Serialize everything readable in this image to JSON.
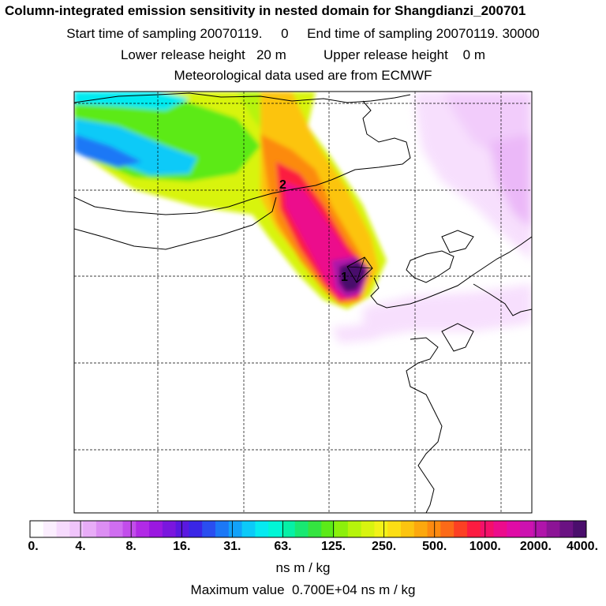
{
  "header": {
    "title": "Column-integrated emission sensitivity in nested domain for Shangdianzi_200701",
    "line2": "Start time of sampling 20070119.     0     End time of sampling 20070119. 30000",
    "line3": "Lower release height   20 m          Upper release height    0 m",
    "line4": "Meteorological data used are from ECMWF"
  },
  "map": {
    "point_labels": [
      "1",
      "2"
    ]
  },
  "colorbar": {
    "tick_labels": [
      "0.",
      "4.",
      "8.",
      "16.",
      "31.",
      "63.",
      "125.",
      "250.",
      "500.",
      "1000.",
      "2000.",
      "4000."
    ],
    "colors": [
      "#ffffff",
      "#fbeefe",
      "#f6dafd",
      "#f0c4fb",
      "#e8acf7",
      "#dc8ef3",
      "#cf6ef0",
      "#c24deb",
      "#b12ae6",
      "#9a18e0",
      "#7a16de",
      "#5a18e0",
      "#3a26e6",
      "#2a4ef0",
      "#1c78f6",
      "#12a2fa",
      "#0ccaf8",
      "#06eaf0",
      "#00f6d6",
      "#06f0a6",
      "#18e872",
      "#34e440",
      "#5cea18",
      "#8cf00c",
      "#b6f40c",
      "#d8f410",
      "#f2f218",
      "#fcde14",
      "#fcc410",
      "#fca80e",
      "#fc8a10",
      "#fc6a18",
      "#fc4024",
      "#fc1c40",
      "#f4106a",
      "#ec0c8c",
      "#e00ca6",
      "#cc12b0",
      "#b014aa",
      "#8c1496",
      "#6a1282",
      "#4a0e6c"
    ],
    "units": "ns m / kg"
  },
  "footer": {
    "max_value": "Maximum value  0.700E+04 ns m / kg"
  }
}
